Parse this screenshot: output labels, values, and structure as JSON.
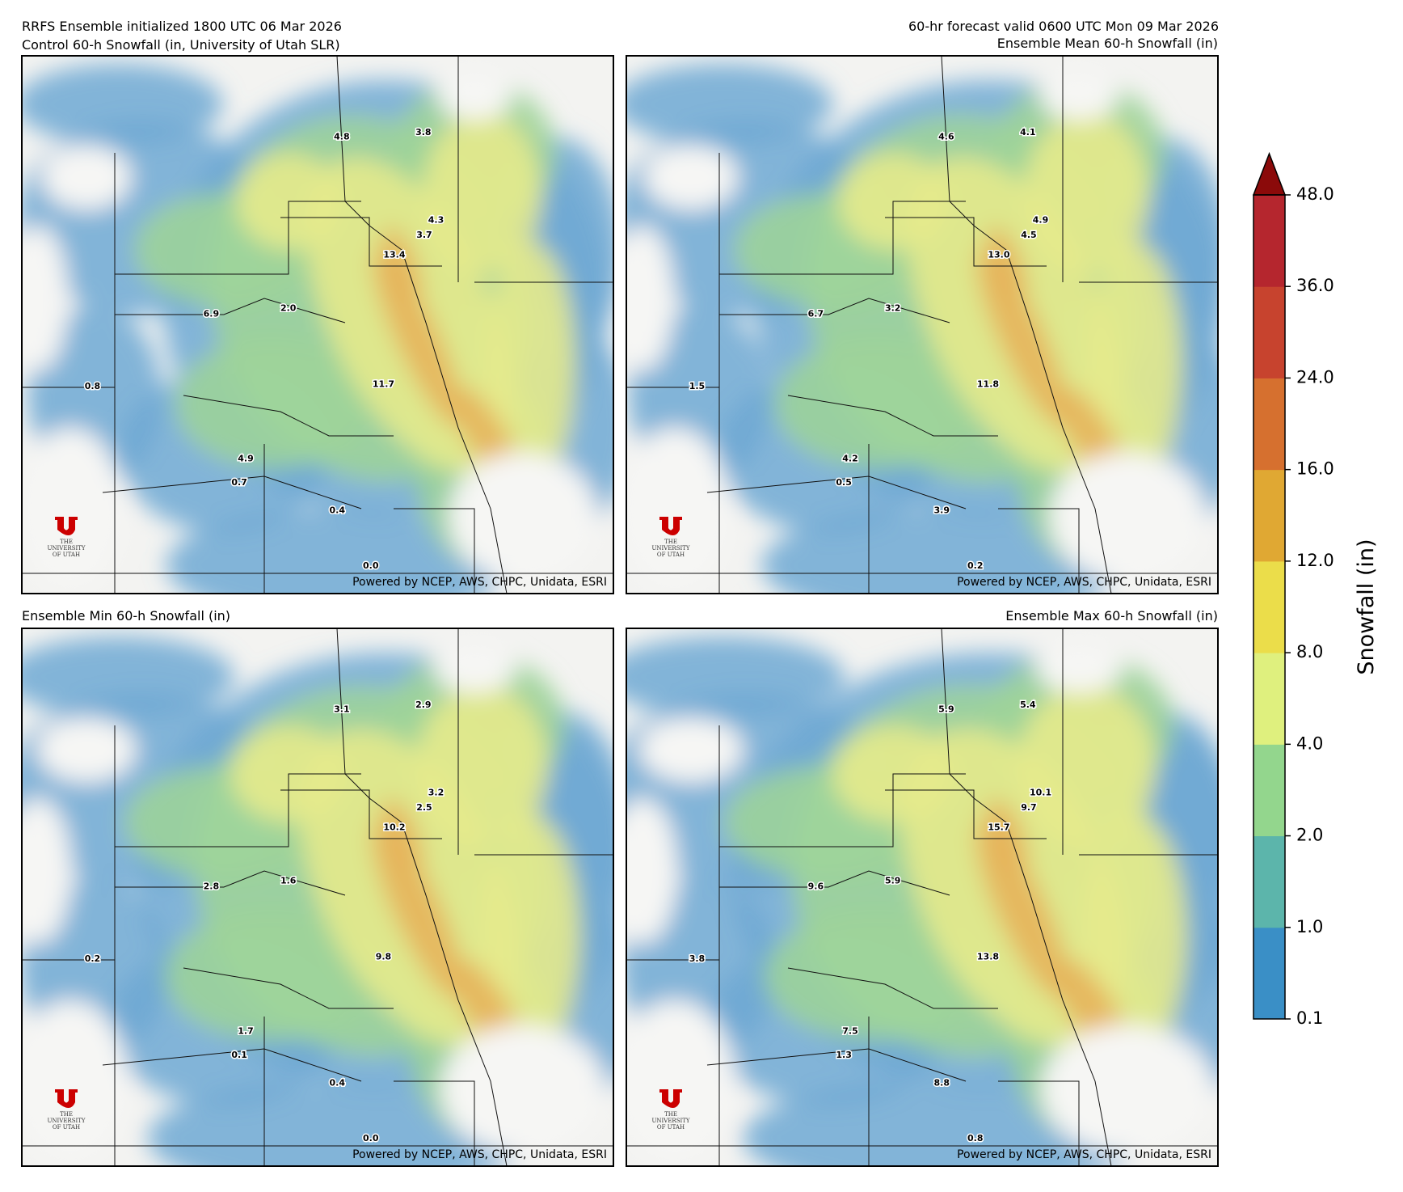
{
  "header": {
    "left": "RRFS Ensemble initialized 1800 UTC 06 Mar 2026",
    "right": "60-hr forecast valid 0600 UTC Mon 09 Mar 2026"
  },
  "credit": "Powered by NCEP, AWS, CHPC, Unidata, ESRI",
  "logo": {
    "top": "THE",
    "middle": "UNIVERSITY",
    "bottom": "OF UTAH"
  },
  "panels": [
    {
      "title": "Control 60-h Snowfall (in, University of Utah SLR)",
      "stations": {
        "values": [
          4.8,
          3.8,
          4.3,
          3.7,
          13.4,
          6.9,
          2.0,
          0.8,
          11.7,
          4.9,
          0.7,
          0.4,
          0.0
        ],
        "value_labels": [
          "4.8",
          "3.8",
          "4.3",
          "3.7",
          "13.4",
          "6.9",
          "2.0",
          "0.8",
          "11.7",
          "4.9",
          "0.7",
          "0.4",
          "0.0"
        ]
      }
    },
    {
      "title": "Ensemble Mean 60-h Snowfall (in)",
      "stations": {
        "values": [
          4.6,
          4.1,
          4.9,
          4.5,
          13.0,
          6.7,
          3.2,
          1.5,
          11.8,
          4.2,
          0.5,
          3.9,
          0.2
        ],
        "value_labels": [
          "4.6",
          "4.1",
          "4.9",
          "4.5",
          "13.0",
          "6.7",
          "3.2",
          "1.5",
          "11.8",
          "4.2",
          "0.5",
          "3.9",
          "0.2"
        ]
      }
    },
    {
      "title": "Ensemble Min 60-h Snowfall (in)",
      "stations": {
        "values": [
          3.1,
          2.9,
          3.2,
          2.5,
          10.2,
          2.8,
          1.6,
          0.2,
          9.8,
          1.7,
          0.1,
          0.4,
          0.0
        ],
        "value_labels": [
          "3.1",
          "2.9",
          "3.2",
          "2.5",
          "10.2",
          "2.8",
          "1.6",
          "0.2",
          "9.8",
          "1.7",
          "0.1",
          "0.4",
          "0.0"
        ]
      }
    },
    {
      "title": "Ensemble Max 60-h Snowfall (in)",
      "stations": {
        "values": [
          5.9,
          5.4,
          10.1,
          9.7,
          15.7,
          9.6,
          5.9,
          3.8,
          13.8,
          7.5,
          1.3,
          8.8,
          0.8
        ],
        "value_labels": [
          "5.9",
          "5.4",
          "10.1",
          "9.7",
          "15.7",
          "9.6",
          "5.9",
          "3.8",
          "13.8",
          "7.5",
          "1.3",
          "8.8",
          "0.8"
        ]
      }
    }
  ],
  "colorbar": {
    "label": "Snowfall (in)",
    "ticks": [
      0.1,
      {
        "value": 1,
        "label": "1.0"
      },
      {
        "value": 2,
        "label": "2.0"
      },
      {
        "value": 4,
        "label": "4.0"
      },
      {
        "value": 8,
        "label": "8.0"
      },
      {
        "value": 12,
        "label": "12.0"
      },
      {
        "value": 16,
        "label": "16.0"
      },
      {
        "value": 24,
        "label": "24.0"
      },
      {
        "value": 36,
        "label": "36.0"
      },
      {
        "value": 48,
        "label": "48.0"
      }
    ],
    "colors": [
      "#3a8fc6",
      "#5cb5ab",
      "#93d68d",
      "#dff07e",
      "#ebdd4a",
      "#e0a833",
      "#d6702f",
      "#c7432e",
      "#b5262e"
    ],
    "extend_color": "#8b0a0a"
  }
}
